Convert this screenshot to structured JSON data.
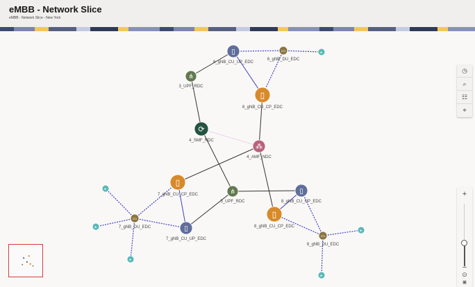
{
  "header": {
    "title": "eMBB - Network Slice",
    "subtitle": "eMBB - Network Slice - New York"
  },
  "toolbar": [
    {
      "icon": "clock-icon",
      "glyph": "◷"
    },
    {
      "icon": "search-icon",
      "glyph": "⌕"
    },
    {
      "icon": "filter-sliders-icon",
      "glyph": "☷"
    },
    {
      "icon": "location-pin-icon",
      "glyph": "⌖"
    }
  ],
  "zoom": {
    "in": "+",
    "out": "−",
    "fit": "⊙",
    "layout": "⋇",
    "level": 0.4
  },
  "colors": {
    "cu_up": "#5f6e9a",
    "du": "#8a7440",
    "upf": "#62794f",
    "cu_cp": "#d88a2a",
    "smf": "#245443",
    "amf": "#b8627d",
    "endpoint": "#5ab8b8",
    "dashed": "#3f3fbf",
    "solid": "#333333",
    "pink": "#d6a0d6"
  },
  "nodes": [
    {
      "id": "6cuup",
      "label": "6_gNB_CU_UP_EDC",
      "type": "cu_up"
    },
    {
      "id": "6du",
      "label": "6_gNB_DU_EDC",
      "type": "du"
    },
    {
      "id": "3upf",
      "label": "3_UPF_RDC",
      "type": "upf"
    },
    {
      "id": "6cucp",
      "label": "6_gNB_CU_CP_EDC",
      "type": "cu_cp"
    },
    {
      "id": "smf",
      "label": "4_SMF_NDC",
      "type": "smf"
    },
    {
      "id": "amf",
      "label": "4_AMF_NDC",
      "type": "amf"
    },
    {
      "id": "7cucp",
      "label": "7_gNB_CU_CP_EDC",
      "type": "cu_cp"
    },
    {
      "id": "5upf",
      "label": "5_UPF_RDC",
      "type": "upf"
    },
    {
      "id": "8cuup",
      "label": "8_gNB_CU_UP_EDC",
      "type": "cu_up"
    },
    {
      "id": "8cucp",
      "label": "8_gNB_CU_CP_EDC",
      "type": "cu_cp"
    },
    {
      "id": "7du",
      "label": "7_gNB_DU_EDC",
      "type": "du"
    },
    {
      "id": "7cuup",
      "label": "7_gNB_CU_UP_EDC",
      "type": "cu_up"
    },
    {
      "id": "8du",
      "label": "8_gNB_DU_EDC",
      "type": "du"
    },
    {
      "id": "e1",
      "label": "",
      "type": "endpoint"
    },
    {
      "id": "e2",
      "label": "",
      "type": "endpoint"
    },
    {
      "id": "e3",
      "label": "",
      "type": "endpoint"
    },
    {
      "id": "e4",
      "label": "",
      "type": "endpoint"
    },
    {
      "id": "e5",
      "label": "",
      "type": "endpoint"
    },
    {
      "id": "e6",
      "label": "",
      "type": "endpoint"
    }
  ],
  "links": [
    [
      "6cuup",
      "3upf",
      "solid"
    ],
    [
      "3upf",
      "smf",
      "solid"
    ],
    [
      "smf",
      "5upf",
      "solid"
    ],
    [
      "7cucp",
      "amf",
      "solid"
    ],
    [
      "6cucp",
      "amf",
      "solid"
    ],
    [
      "amf",
      "8cucp",
      "solid"
    ],
    [
      "5upf",
      "8cuup",
      "solid"
    ],
    [
      "5upf",
      "7cuup",
      "solid"
    ],
    [
      "6cuup",
      "6cucp",
      "blue"
    ],
    [
      "7cucp",
      "7cuup",
      "blue"
    ],
    [
      "8cuup",
      "8cucp",
      "blue"
    ],
    [
      "6cuup",
      "6du",
      "dashed"
    ],
    [
      "6du",
      "e1",
      "dashed"
    ],
    [
      "6du",
      "6cucp",
      "dashed"
    ],
    [
      "7du",
      "7cucp",
      "dashed"
    ],
    [
      "7du",
      "7cuup",
      "dashed"
    ],
    [
      "7du",
      "e2",
      "dashed"
    ],
    [
      "7du",
      "e3",
      "dashed"
    ],
    [
      "7du",
      "e4",
      "dashed"
    ],
    [
      "8du",
      "8cuup",
      "dashed"
    ],
    [
      "8du",
      "8cucp",
      "dashed"
    ],
    [
      "8du",
      "e5",
      "dashed"
    ],
    [
      "8du",
      "e6",
      "dashed"
    ],
    [
      "smf",
      "amf",
      "pink"
    ]
  ]
}
